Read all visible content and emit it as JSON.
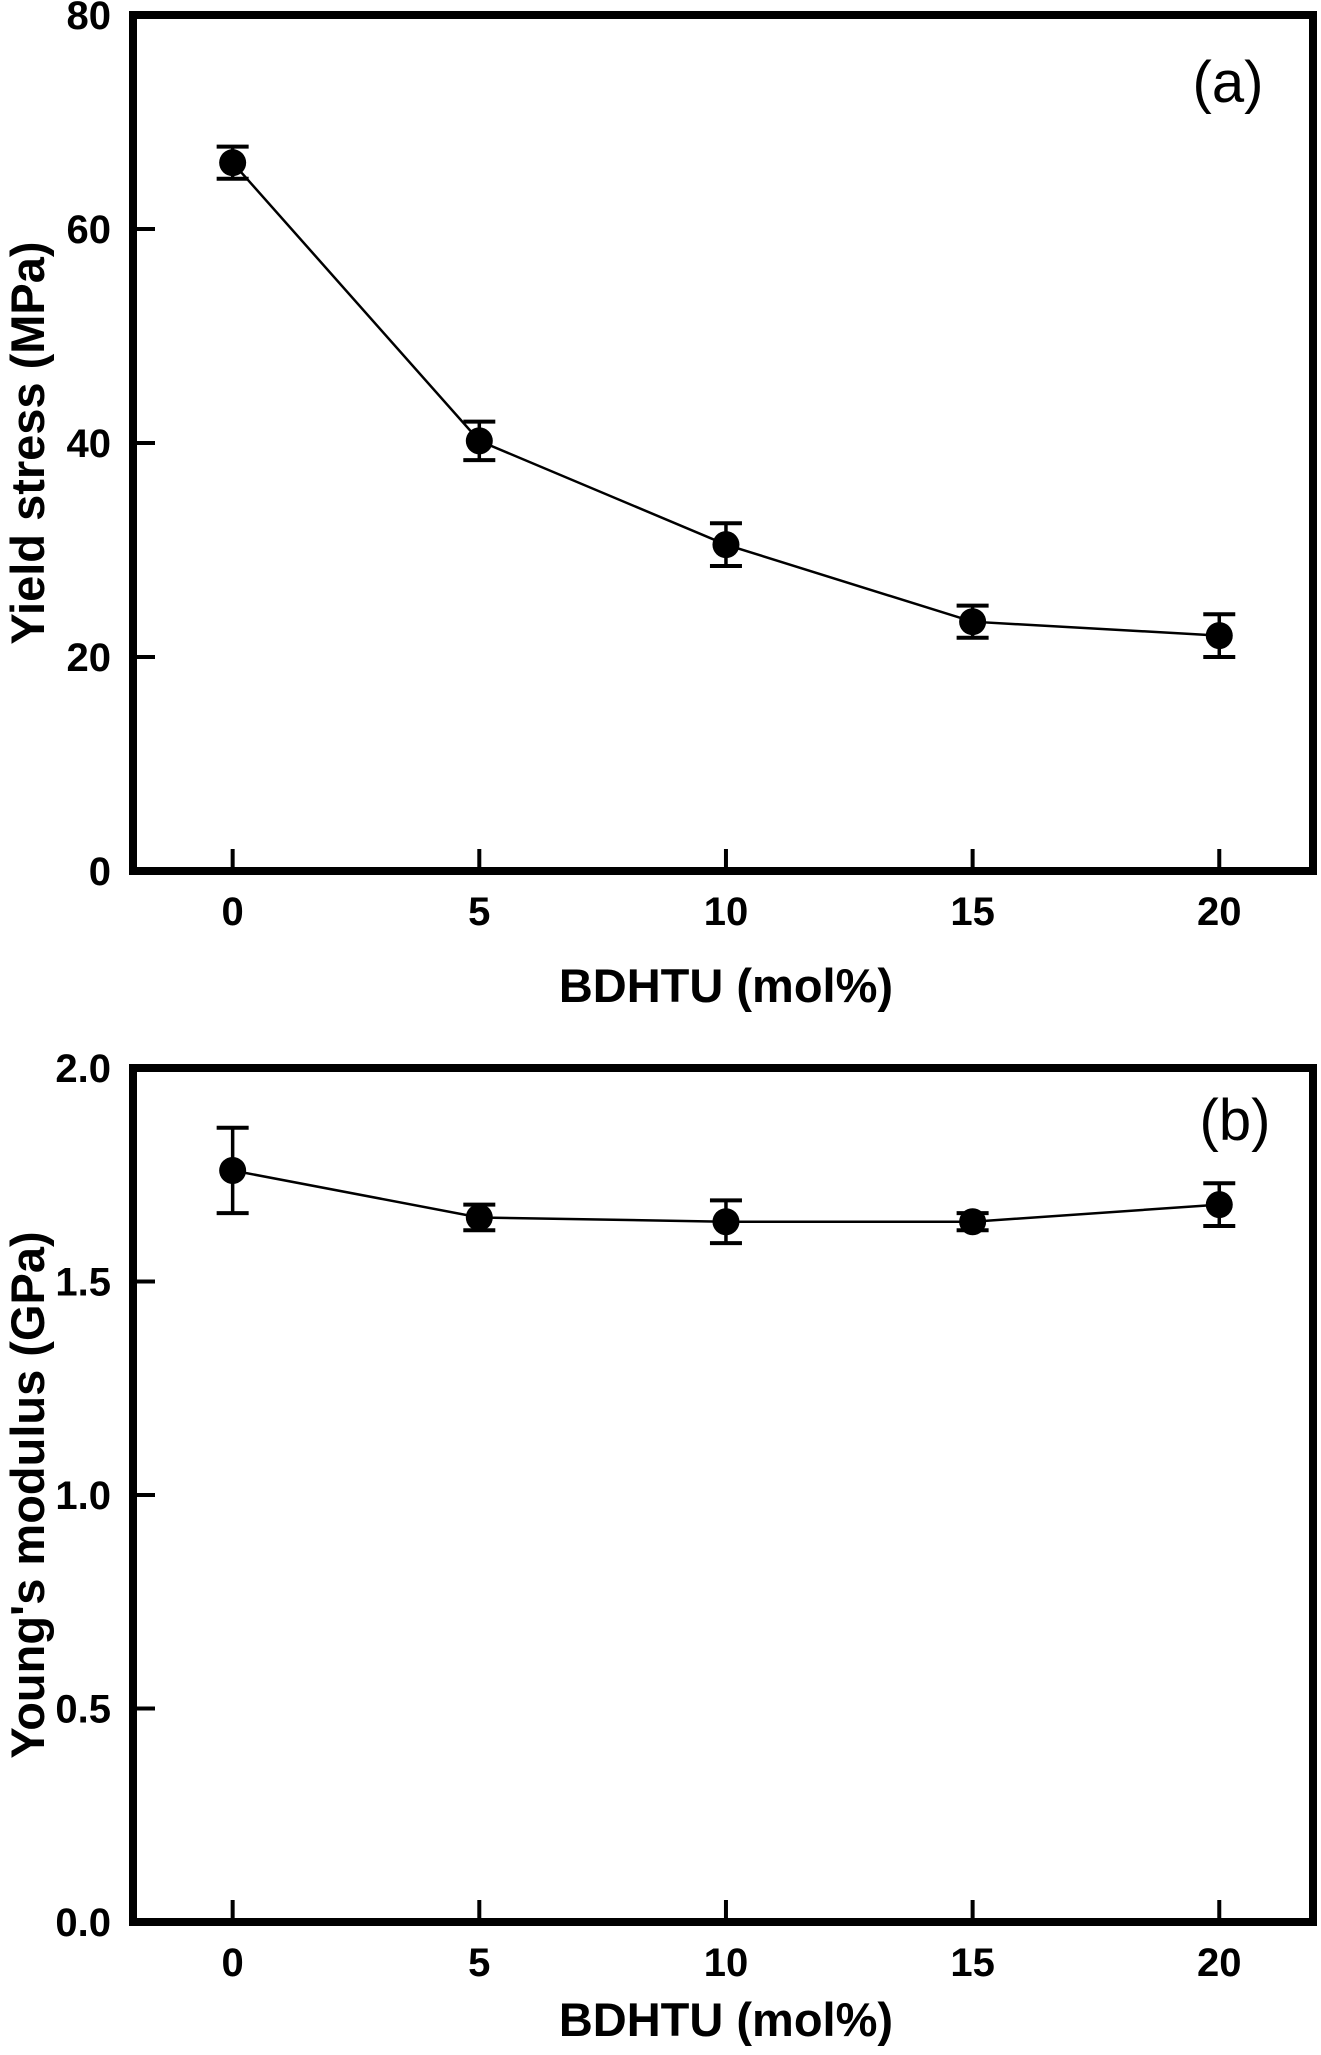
{
  "figure": {
    "background_color": "#ffffff",
    "foreground_color": "#000000"
  },
  "chart_data": [
    {
      "id": "a",
      "type": "line",
      "panel_label": "(a)",
      "xlabel": "BDHTU (mol%)",
      "ylabel": "Yield stress (MPa)",
      "marker": "filled-circle",
      "error_bars": true,
      "grid": false,
      "legend": null,
      "x": [
        0,
        5,
        10,
        15,
        20
      ],
      "y": [
        66.2,
        40.2,
        30.5,
        23.3,
        22.0
      ],
      "yerr": [
        1.5,
        1.8,
        2.0,
        1.5,
        2.0
      ],
      "xlim": [
        -2.02,
        21.9
      ],
      "ylim": [
        0,
        80
      ],
      "xticks": [
        0,
        5,
        10,
        15,
        20
      ],
      "xtick_labels": [
        "0",
        "5",
        "10",
        "15",
        "20"
      ],
      "yticks": [
        0,
        20,
        40,
        60,
        80
      ],
      "ytick_labels": [
        "0",
        "20",
        "40",
        "60",
        "80"
      ]
    },
    {
      "id": "b",
      "type": "line",
      "panel_label": "(b)",
      "xlabel": "BDHTU (mol%)",
      "ylabel": "Young's modulus (GPa)",
      "marker": "filled-circle",
      "error_bars": true,
      "grid": false,
      "legend": null,
      "x": [
        0,
        5,
        10,
        15,
        20
      ],
      "y": [
        1.76,
        1.65,
        1.64,
        1.64,
        1.68
      ],
      "yerr": [
        0.1,
        0.03,
        0.05,
        0.02,
        0.05
      ],
      "xlim": [
        -2.02,
        21.9
      ],
      "ylim": [
        0.0,
        2.0
      ],
      "xticks": [
        0,
        5,
        10,
        15,
        20
      ],
      "xtick_labels": [
        "0",
        "5",
        "10",
        "15",
        "20"
      ],
      "yticks": [
        0.0,
        0.5,
        1.0,
        1.5,
        2.0
      ],
      "ytick_labels": [
        "0.0",
        "0.5",
        "1.0",
        "1.5",
        "2.0"
      ]
    }
  ]
}
